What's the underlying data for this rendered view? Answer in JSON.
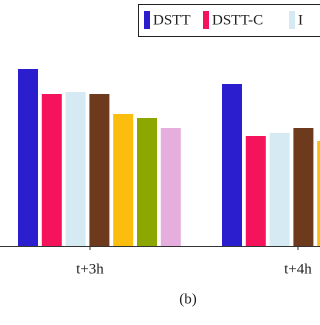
{
  "chart_data": {
    "type": "bar",
    "caption": "(b)",
    "categories": [
      "t+3h",
      "t+4h"
    ],
    "ylim": [
      0,
      200
    ],
    "series": [
      {
        "name": "DSTT",
        "color": "#2a1ecf",
        "values": [
          177,
          162
        ]
      },
      {
        "name": "DSTT-C",
        "color": "#f5135b",
        "values": [
          152,
          110
        ]
      },
      {
        "name": "I",
        "color": "#d6eaf4",
        "values": [
          154,
          113
        ]
      },
      {
        "color": "#6e3a1e",
        "values": [
          152,
          118
        ]
      },
      {
        "color": "#fbbd0e",
        "values": [
          132,
          105
        ]
      },
      {
        "color": "#8ca800",
        "values": [
          128,
          null
        ]
      },
      {
        "color": "#e6aedd",
        "values": [
          118,
          null
        ]
      }
    ]
  }
}
